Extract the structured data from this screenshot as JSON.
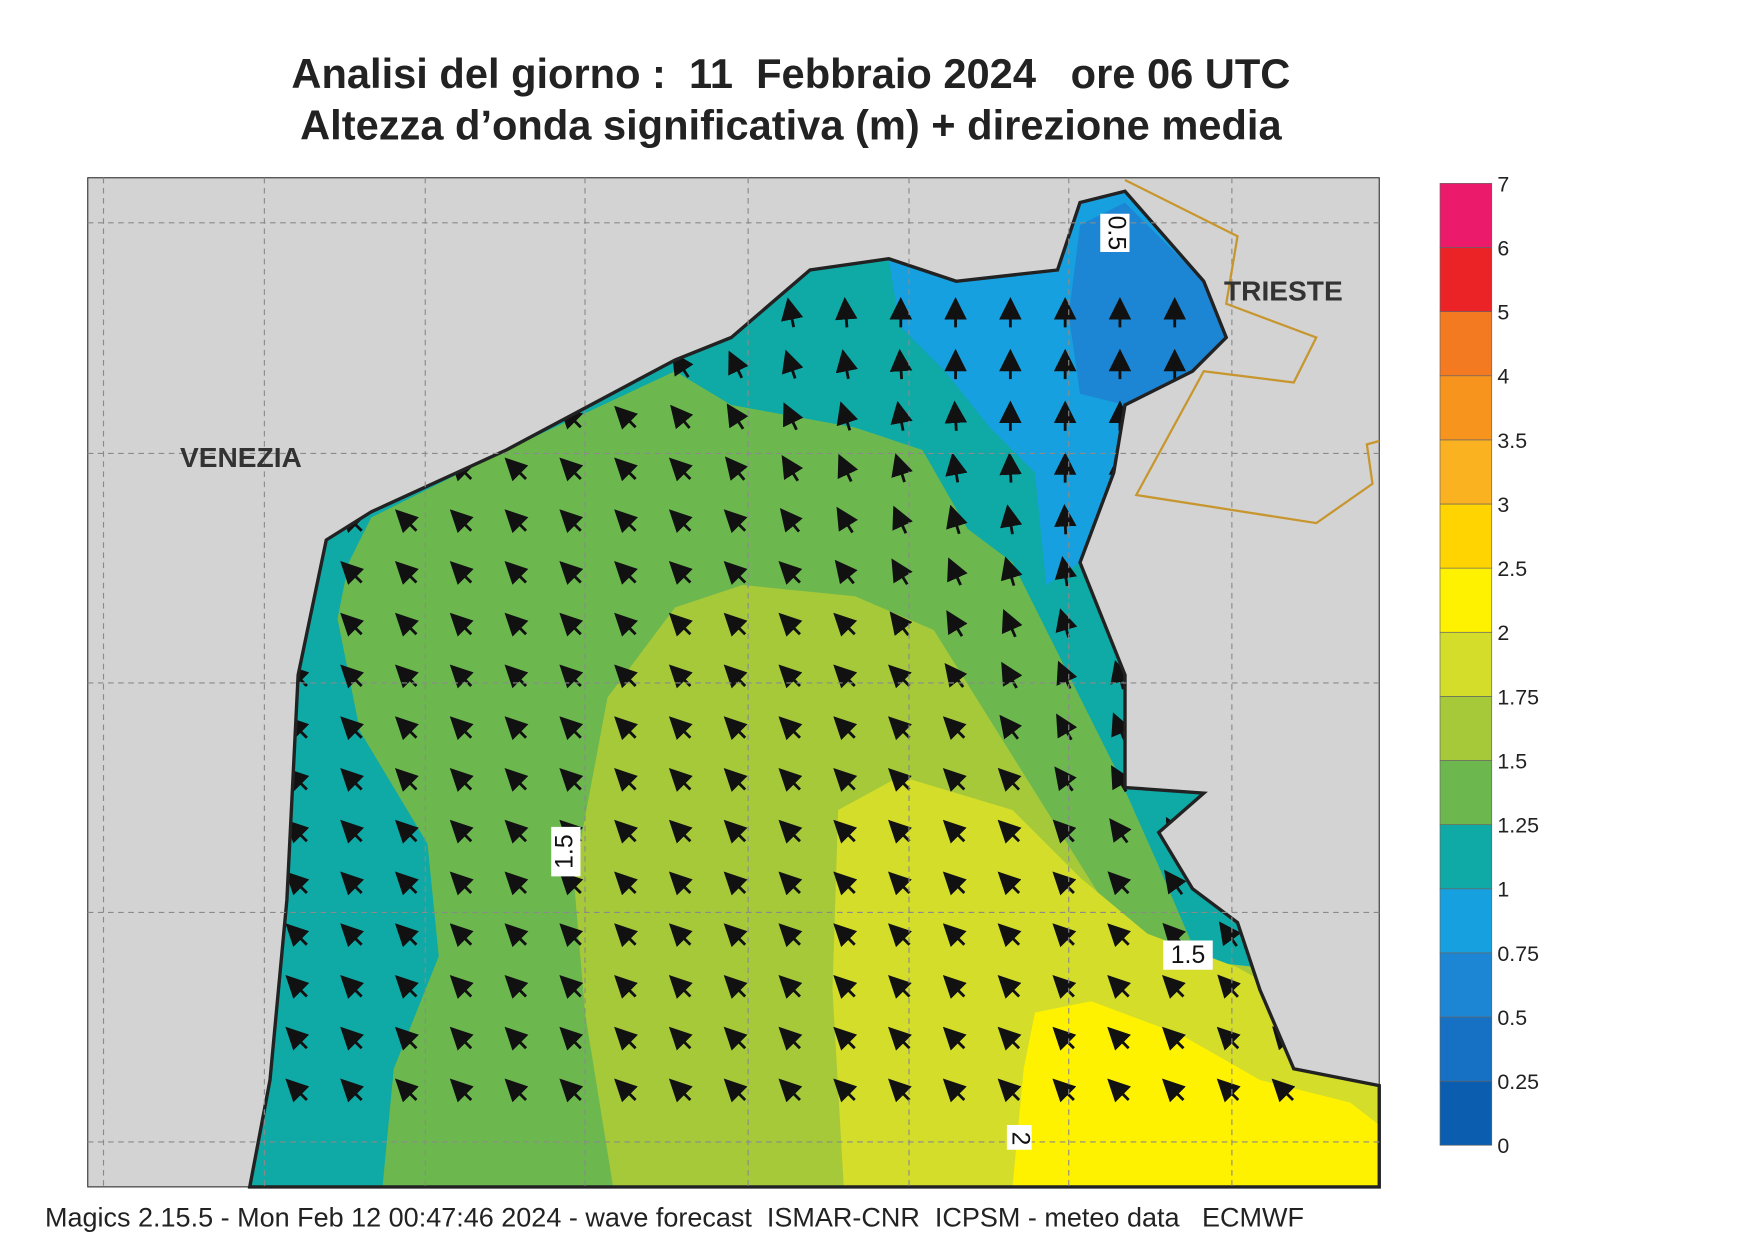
{
  "header": {
    "title": "Analisi del giorno :  11  Febbraio 2024   ore 06 UTC",
    "subtitle": "Altezza d’onda significativa (m) + direzione media"
  },
  "map": {
    "cities": [
      "VENEZIA",
      "TRIESTE"
    ],
    "contour_labels": [
      "0.5",
      "1.5",
      "1.5",
      "2"
    ]
  },
  "colorbar": {
    "levels": [
      0,
      0.25,
      0.5,
      0.75,
      1,
      1.25,
      1.5,
      1.75,
      2,
      2.5,
      3,
      3.5,
      4,
      5,
      6,
      7
    ],
    "colors": [
      "#0b5db0",
      "#1670c4",
      "#1d86d4",
      "#17a0e0",
      "#0fa9a6",
      "#6cb84f",
      "#a6c93a",
      "#d4dd2a",
      "#fff200",
      "#ffd400",
      "#fbb220",
      "#f7941d",
      "#f47a22",
      "#ec2326",
      "#ec1a6a"
    ]
  },
  "footer": "Magics 2.15.5 - Mon Feb 12 00:47:46 2024 - wave forecast  ISMAR-CNR  ICPSM - meteo data   ECMWF"
}
